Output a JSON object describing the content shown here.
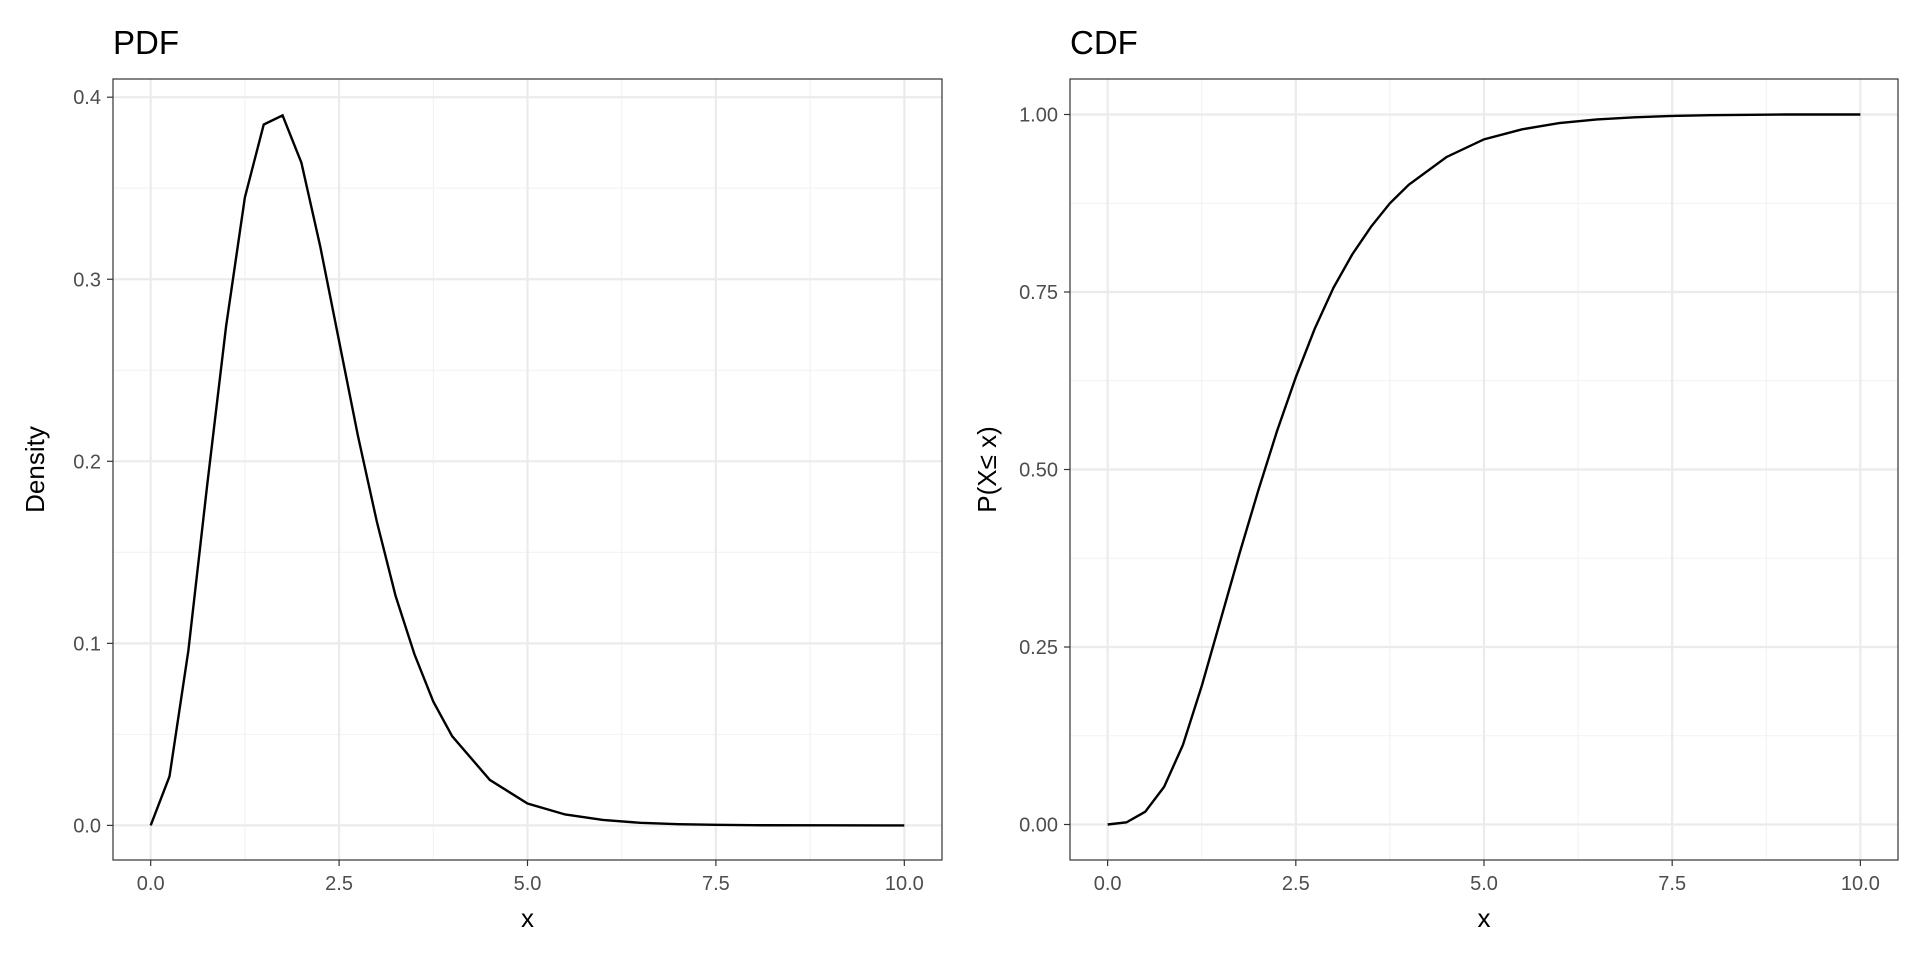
{
  "chart_data": [
    {
      "type": "line",
      "title": "PDF",
      "xlabel": "x",
      "ylabel": "Density",
      "xlim": [
        -0.5,
        10.5
      ],
      "ylim": [
        -0.019,
        0.41
      ],
      "x_ticks": [
        0,
        2.5,
        5,
        7.5,
        10
      ],
      "x_tick_labels": [
        "0.0",
        "2.5",
        "5.0",
        "7.5",
        "10.0"
      ],
      "y_ticks": [
        0,
        0.1,
        0.2,
        0.3,
        0.4
      ],
      "y_tick_labels": [
        "0.0",
        "0.1",
        "0.2",
        "0.3",
        "0.4"
      ],
      "grid": true,
      "series": [
        {
          "x": [
            0,
            0.25,
            0.5,
            0.75,
            1.0,
            1.25,
            1.5,
            1.75,
            2.0,
            2.25,
            2.5,
            2.75,
            3.0,
            3.25,
            3.5,
            3.75,
            4.0,
            4.5,
            5.0,
            5.5,
            6.0,
            6.5,
            7.0,
            7.5,
            8.0,
            9.0,
            10.0
          ],
          "y": [
            0,
            0.027,
            0.096,
            0.187,
            0.274,
            0.345,
            0.385,
            0.39,
            0.364,
            0.318,
            0.266,
            0.214,
            0.167,
            0.126,
            0.094,
            0.068,
            0.049,
            0.025,
            0.012,
            0.006,
            0.003,
            0.0014,
            0.0007,
            0.0003,
            0.0001,
            3e-05,
            0.0
          ]
        }
      ]
    },
    {
      "type": "line",
      "title": "CDF",
      "xlabel": "x",
      "ylabel": "P(X≤ x)",
      "xlim": [
        -0.5,
        10.5
      ],
      "ylim": [
        -0.05,
        1.05
      ],
      "x_ticks": [
        0,
        2.5,
        5,
        7.5,
        10
      ],
      "x_tick_labels": [
        "0.0",
        "2.5",
        "5.0",
        "7.5",
        "10.0"
      ],
      "y_ticks": [
        0,
        0.25,
        0.5,
        0.75,
        1.0
      ],
      "y_tick_labels": [
        "0.00",
        "0.25",
        "0.50",
        "0.75",
        "1.00"
      ],
      "grid": true,
      "series": [
        {
          "x": [
            0,
            0.25,
            0.5,
            0.75,
            1.0,
            1.25,
            1.5,
            1.75,
            2.0,
            2.25,
            2.5,
            2.75,
            3.0,
            3.25,
            3.5,
            3.75,
            4.0,
            4.5,
            5.0,
            5.5,
            6.0,
            6.5,
            7.0,
            7.5,
            8.0,
            9.0,
            10.0
          ],
          "y": [
            0,
            0.003,
            0.018,
            0.053,
            0.112,
            0.195,
            0.288,
            0.381,
            0.47,
            0.554,
            0.63,
            0.698,
            0.756,
            0.803,
            0.842,
            0.875,
            0.901,
            0.94,
            0.965,
            0.979,
            0.988,
            0.993,
            0.996,
            0.998,
            0.999,
            1.0,
            1.0
          ]
        }
      ]
    }
  ]
}
